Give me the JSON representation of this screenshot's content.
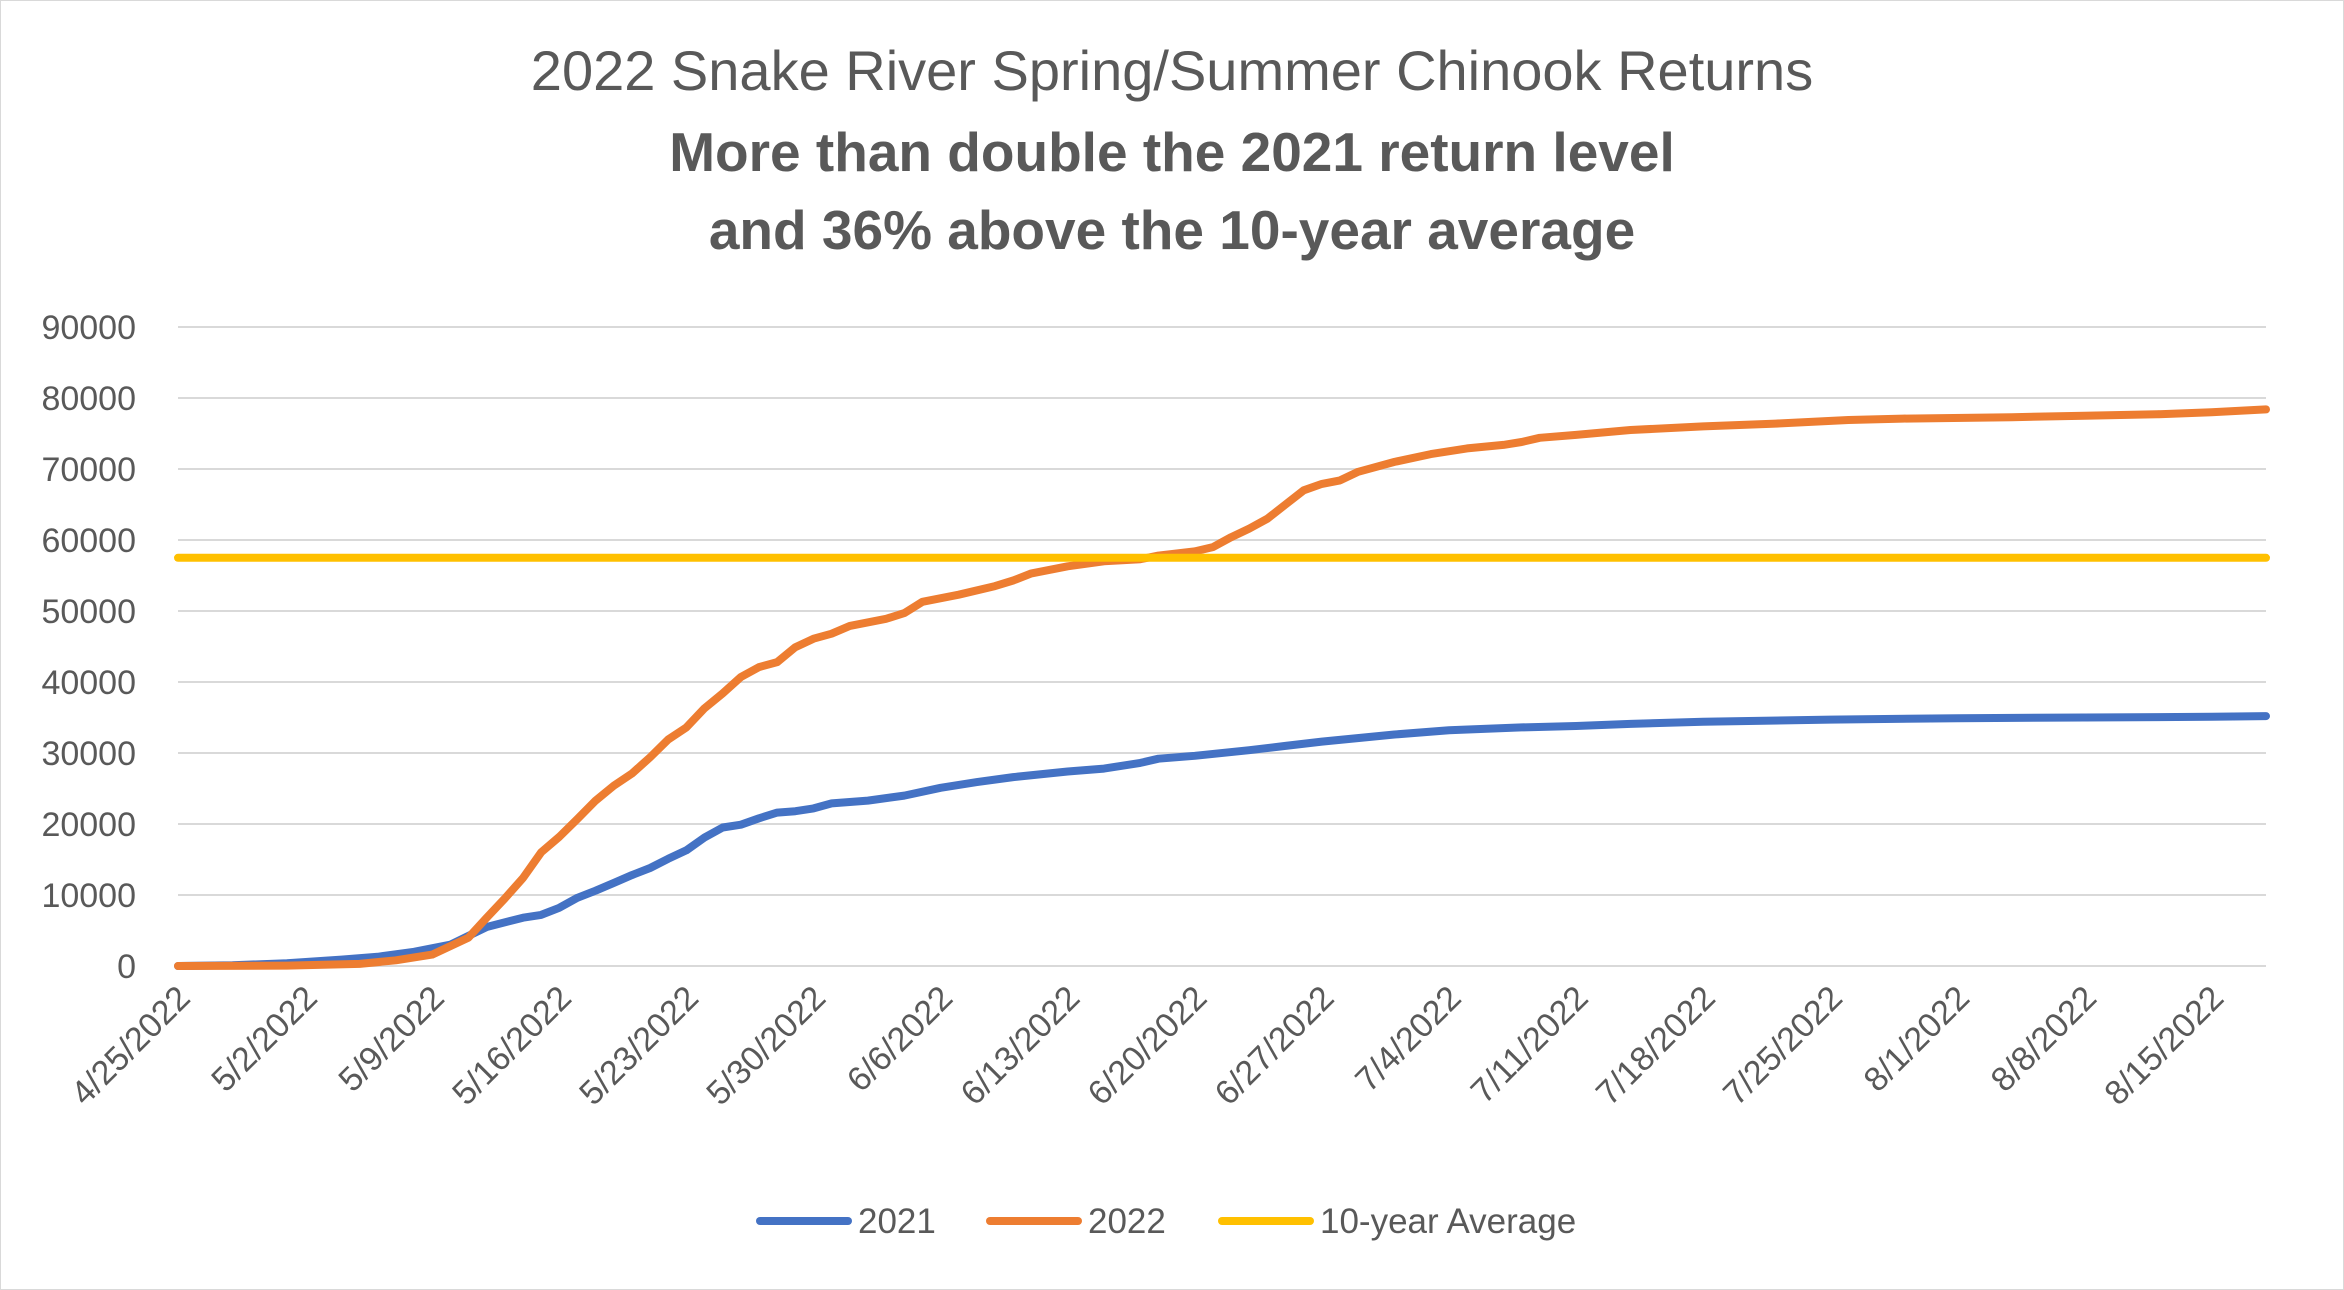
{
  "chart_data": {
    "type": "line",
    "title": "2022 Snake River Spring/Summer Chinook Returns",
    "subtitle_lines": [
      "More than double the 2021 return level",
      "and 36% above the 10-year average"
    ],
    "xlabel": "",
    "ylabel": "",
    "ylim": [
      0,
      90000
    ],
    "yticks": [
      "0",
      "10000",
      "20000",
      "30000",
      "40000",
      "50000",
      "60000",
      "70000",
      "80000",
      "90000"
    ],
    "xticks": [
      "4/25/2022",
      "5/2/2022",
      "5/9/2022",
      "5/16/2022",
      "5/23/2022",
      "5/30/2022",
      "6/6/2022",
      "6/13/2022",
      "6/20/2022",
      "6/27/2022",
      "7/4/2022",
      "7/11/2022",
      "7/18/2022",
      "7/25/2022",
      "8/1/2022",
      "8/8/2022",
      "8/15/2022"
    ],
    "xrange": [
      "4/25/2022",
      "8/18/2022"
    ],
    "grid": true,
    "legend_position": "bottom",
    "series": [
      {
        "name": "2021",
        "color": "#4472C4",
        "points": [
          [
            "4/25/2022",
            0
          ],
          [
            "4/28/2022",
            100
          ],
          [
            "5/1/2022",
            400
          ],
          [
            "5/4/2022",
            900
          ],
          [
            "5/6/2022",
            1300
          ],
          [
            "5/8/2022",
            2000
          ],
          [
            "5/10/2022",
            3000
          ],
          [
            "5/12/2022",
            5500
          ],
          [
            "5/14/2022",
            6800
          ],
          [
            "5/15/2022",
            7200
          ],
          [
            "5/16/2022",
            8200
          ],
          [
            "5/17/2022",
            9600
          ],
          [
            "5/18/2022",
            10600
          ],
          [
            "5/19/2022",
            11700
          ],
          [
            "5/20/2022",
            12800
          ],
          [
            "5/21/2022",
            13800
          ],
          [
            "5/22/2022",
            15100
          ],
          [
            "5/23/2022",
            16300
          ],
          [
            "5/24/2022",
            18100
          ],
          [
            "5/25/2022",
            19500
          ],
          [
            "5/26/2022",
            19900
          ],
          [
            "5/27/2022",
            20800
          ],
          [
            "5/28/2022",
            21600
          ],
          [
            "5/29/2022",
            21800
          ],
          [
            "5/30/2022",
            22200
          ],
          [
            "5/31/2022",
            22900
          ],
          [
            "6/2/2022",
            23300
          ],
          [
            "6/4/2022",
            24000
          ],
          [
            "6/6/2022",
            25100
          ],
          [
            "6/8/2022",
            25900
          ],
          [
            "6/10/2022",
            26600
          ],
          [
            "6/13/2022",
            27400
          ],
          [
            "6/15/2022",
            27800
          ],
          [
            "6/17/2022",
            28600
          ],
          [
            "6/18/2022",
            29200
          ],
          [
            "6/20/2022",
            29600
          ],
          [
            "6/23/2022",
            30400
          ],
          [
            "6/25/2022",
            31000
          ],
          [
            "6/27/2022",
            31600
          ],
          [
            "7/1/2022",
            32600
          ],
          [
            "7/4/2022",
            33200
          ],
          [
            "7/8/2022",
            33600
          ],
          [
            "7/11/2022",
            33800
          ],
          [
            "7/14/2022",
            34100
          ],
          [
            "7/18/2022",
            34400
          ],
          [
            "7/25/2022",
            34700
          ],
          [
            "8/1/2022",
            34900
          ],
          [
            "8/8/2022",
            35000
          ],
          [
            "8/15/2022",
            35100
          ],
          [
            "8/18/2022",
            35200
          ]
        ]
      },
      {
        "name": "2022",
        "color": "#ED7D31",
        "points": [
          [
            "4/25/2022",
            0
          ],
          [
            "5/1/2022",
            50
          ],
          [
            "5/5/2022",
            300
          ],
          [
            "5/7/2022",
            800
          ],
          [
            "5/9/2022",
            1600
          ],
          [
            "5/11/2022",
            4000
          ],
          [
            "5/12/2022",
            6800
          ],
          [
            "5/13/2022",
            9500
          ],
          [
            "5/14/2022",
            12400
          ],
          [
            "5/15/2022",
            16000
          ],
          [
            "5/16/2022",
            18200
          ],
          [
            "5/17/2022",
            20700
          ],
          [
            "5/18/2022",
            23300
          ],
          [
            "5/19/2022",
            25400
          ],
          [
            "5/20/2022",
            27100
          ],
          [
            "5/21/2022",
            29400
          ],
          [
            "5/22/2022",
            31900
          ],
          [
            "5/23/2022",
            33600
          ],
          [
            "5/24/2022",
            36300
          ],
          [
            "5/25/2022",
            38400
          ],
          [
            "5/26/2022",
            40700
          ],
          [
            "5/27/2022",
            42100
          ],
          [
            "5/28/2022",
            42800
          ],
          [
            "5/29/2022",
            44900
          ],
          [
            "5/30/2022",
            46100
          ],
          [
            "5/31/2022",
            46800
          ],
          [
            "6/1/2022",
            47900
          ],
          [
            "6/3/2022",
            48900
          ],
          [
            "6/4/2022",
            49700
          ],
          [
            "6/5/2022",
            51300
          ],
          [
            "6/7/2022",
            52300
          ],
          [
            "6/9/2022",
            53500
          ],
          [
            "6/10/2022",
            54300
          ],
          [
            "6/11/2022",
            55300
          ],
          [
            "6/13/2022",
            56300
          ],
          [
            "6/15/2022",
            57000
          ],
          [
            "6/17/2022",
            57300
          ],
          [
            "6/18/2022",
            57800
          ],
          [
            "6/20/2022",
            58400
          ],
          [
            "6/21/2022",
            59000
          ],
          [
            "6/22/2022",
            60400
          ],
          [
            "6/23/2022",
            61600
          ],
          [
            "6/24/2022",
            63000
          ],
          [
            "6/25/2022",
            65000
          ],
          [
            "6/26/2022",
            67000
          ],
          [
            "6/27/2022",
            67900
          ],
          [
            "6/28/2022",
            68400
          ],
          [
            "6/29/2022",
            69600
          ],
          [
            "7/1/2022",
            71000
          ],
          [
            "7/3/2022",
            72100
          ],
          [
            "7/5/2022",
            72900
          ],
          [
            "7/7/2022",
            73400
          ],
          [
            "7/8/2022",
            73800
          ],
          [
            "7/9/2022",
            74400
          ],
          [
            "7/11/2022",
            74800
          ],
          [
            "7/14/2022",
            75500
          ],
          [
            "7/18/2022",
            76000
          ],
          [
            "7/22/2022",
            76400
          ],
          [
            "7/26/2022",
            76900
          ],
          [
            "7/29/2022",
            77100
          ],
          [
            "8/4/2022",
            77300
          ],
          [
            "8/8/2022",
            77500
          ],
          [
            "8/12/2022",
            77700
          ],
          [
            "8/15/2022",
            78000
          ],
          [
            "8/18/2022",
            78400
          ]
        ]
      },
      {
        "name": "10-year Average",
        "color": "#FFC000",
        "points": [
          [
            "4/25/2022",
            57500
          ],
          [
            "8/18/2022",
            57500
          ]
        ]
      }
    ]
  }
}
